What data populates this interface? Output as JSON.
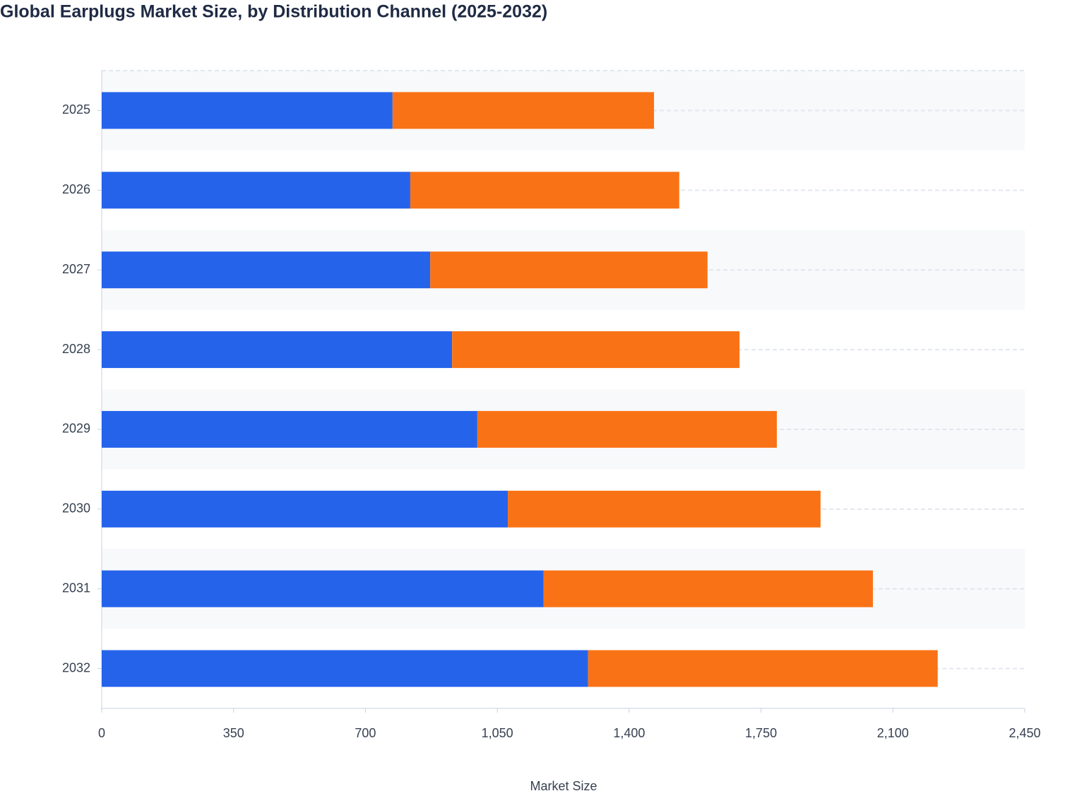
{
  "chart_data": {
    "type": "stacked-bar-horizontal",
    "title": "Global Earplugs Market Size, by Distribution Channel (2025-2032)",
    "x_label": "Market Size",
    "categories": [
      "2025",
      "2026",
      "2027",
      "2028",
      "2029",
      "2030",
      "2031",
      "2032"
    ],
    "series": [
      {
        "color": "#2563eb",
        "values": [
          772,
          819,
          872,
          930,
          997,
          1078,
          1173,
          1291
        ]
      },
      {
        "color": "#f97316",
        "values": [
          694,
          714,
          736,
          763,
          795,
          830,
          874,
          928
        ]
      }
    ],
    "xlim": [
      0,
      2450
    ],
    "xticks": [
      0,
      350,
      700,
      {
        "value": 1050,
        "label": "1,050"
      },
      {
        "value": 1400,
        "label": "1,400"
      },
      {
        "value": 1750,
        "label": "1,750"
      },
      {
        "value": 2100,
        "label": "2,100"
      },
      {
        "value": 2450,
        "label": "2,450"
      }
    ],
    "grid": true
  }
}
